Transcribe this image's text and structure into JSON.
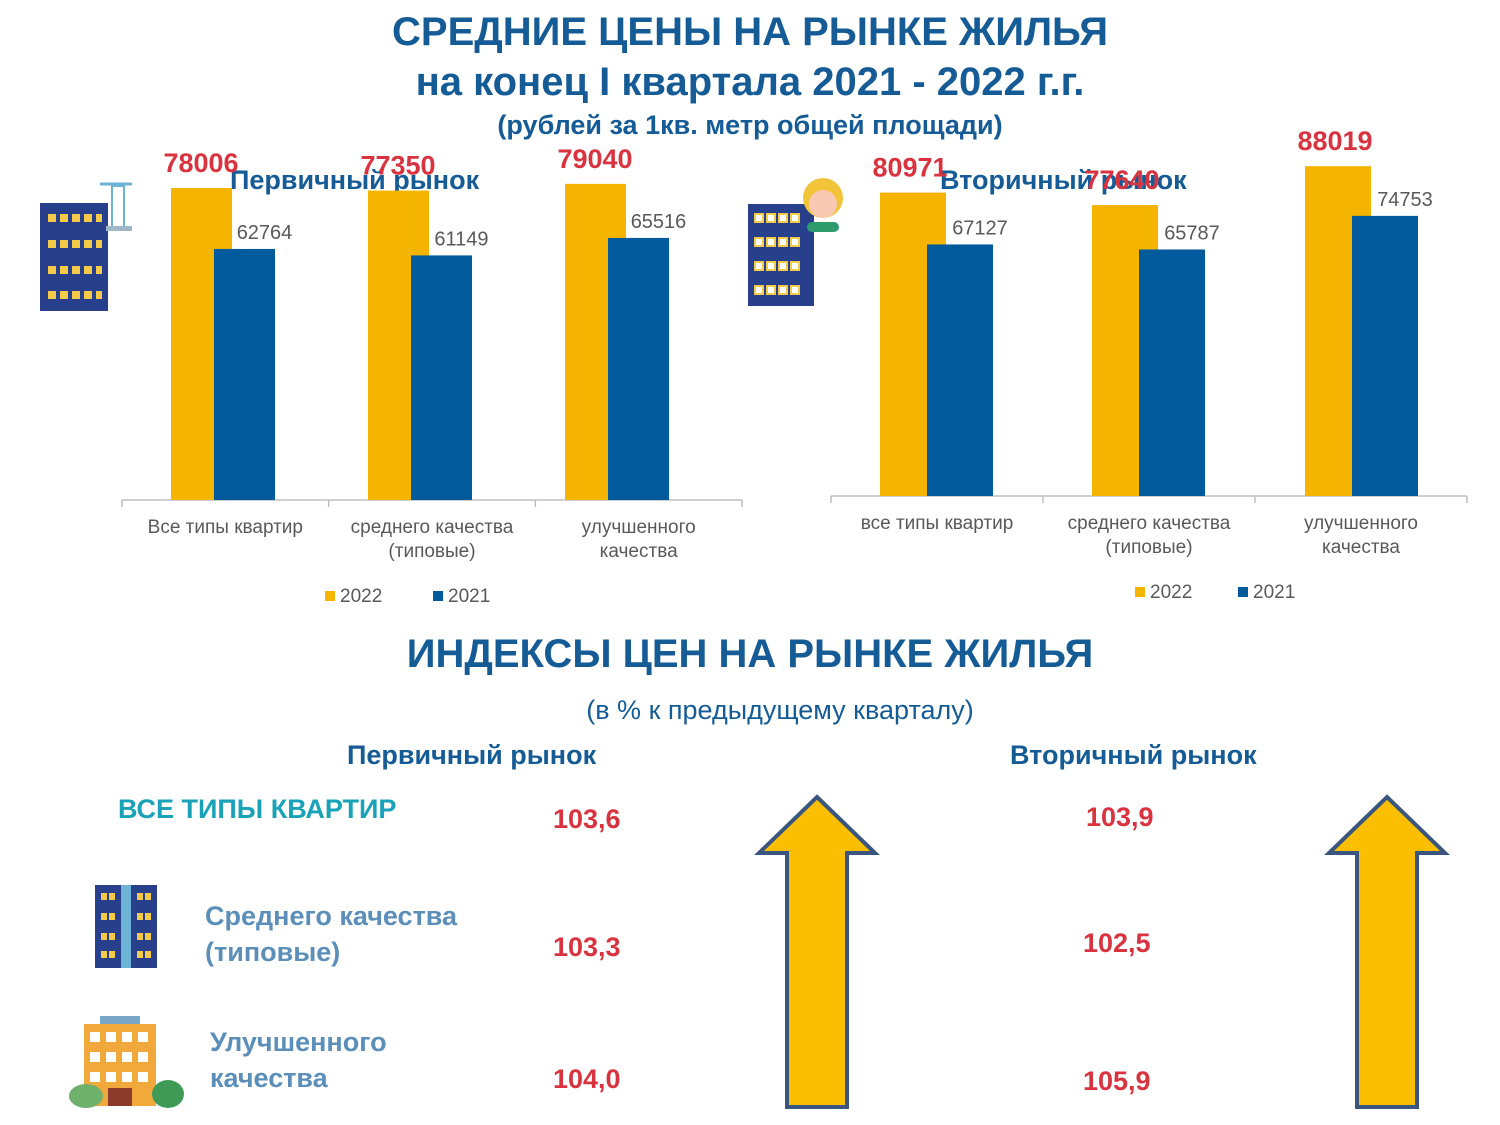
{
  "header": {
    "title_line1": "СРЕДНИЕ ЦЕНЫ НА РЫНКЕ ЖИЛЬЯ",
    "title_line2": "на конец I квартала 2021 - 2022 г.г.",
    "subtitle": "(рублей за 1кв. метр общей площади)"
  },
  "colors": {
    "y2022": "#f5b400",
    "y2021": "#005a9c",
    "accent_red": "#d9333f",
    "title_blue": "#155b96",
    "teal": "#1aa3b8"
  },
  "chart_data": [
    {
      "type": "bar",
      "title": "Первичный рынок",
      "categories": [
        "Все типы квартир",
        "среднего качества (типовые)",
        "улучшенного качества"
      ],
      "category_lines": [
        [
          "Все типы квартир"
        ],
        [
          "среднего качества",
          "(типовые)"
        ],
        [
          "улучшенного",
          "качества"
        ]
      ],
      "series": [
        {
          "name": "2022",
          "values": [
            78006,
            77350,
            79040
          ]
        },
        {
          "name": "2021",
          "values": [
            62764,
            61149,
            65516
          ]
        }
      ],
      "legend": "bottom",
      "grid": false,
      "ylim": [
        0,
        90000
      ]
    },
    {
      "type": "bar",
      "title": "Вторичный рынок",
      "categories": [
        "все типы квартир",
        "среднего качества (типовые)",
        "улучшенного качества"
      ],
      "category_lines": [
        [
          "все типы квартир"
        ],
        [
          "среднего качества",
          "(типовые)"
        ],
        [
          "улучшенного",
          "качества"
        ]
      ],
      "series": [
        {
          "name": "2022",
          "values": [
            80971,
            77640,
            88019
          ]
        },
        {
          "name": "2021",
          "values": [
            67127,
            65787,
            74753
          ]
        }
      ],
      "legend": "bottom",
      "grid": false,
      "ylim": [
        0,
        95000
      ]
    }
  ],
  "indices": {
    "title": "ИНДЕКСЫ ЦЕН НА РЫНКЕ ЖИЛЬЯ",
    "subtitle": "(в % к предыдущему кварталу)",
    "primary_label": "Первичный рынок",
    "secondary_label": "Вторичный рынок",
    "rows": [
      {
        "label": "ВСЕ ТИПЫ КВАРТИР",
        "primary": "103,6",
        "secondary": "103,9"
      },
      {
        "label_line1": "Среднего качества",
        "label_line2": "(типовые)",
        "primary": "103,3",
        "secondary": "102,5"
      },
      {
        "label_line1": "Улучшенного",
        "label_line2": "качества",
        "primary": "104,0",
        "secondary": "105,9"
      }
    ],
    "arrow_icon": "up-arrow-icon"
  }
}
